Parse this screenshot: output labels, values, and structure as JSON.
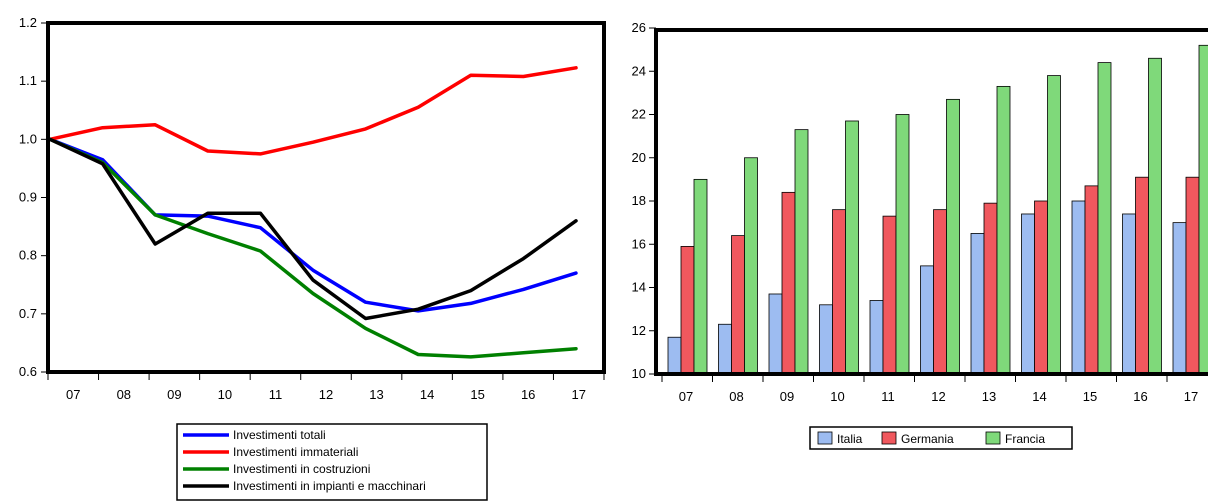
{
  "chart_data": [
    {
      "type": "line",
      "x": [
        "07",
        "08",
        "09",
        "10",
        "11",
        "12",
        "13",
        "14",
        "15",
        "16",
        "17"
      ],
      "ylim": [
        0.6,
        1.2
      ],
      "yticks": [
        "0.6",
        "0.7",
        "0.8",
        "0.9",
        "1.0",
        "1.1",
        "1.2"
      ],
      "grid": false,
      "legend_position": "bottom",
      "series": [
        {
          "name": "Investimenti totali",
          "color": "#0000ff",
          "values": [
            1.0,
            0.965,
            0.87,
            0.868,
            0.848,
            0.775,
            0.72,
            0.705,
            0.718,
            0.742,
            0.77
          ]
        },
        {
          "name": "Investimenti immateriali",
          "color": "#ff0000",
          "values": [
            1.0,
            1.02,
            1.025,
            0.98,
            0.975,
            0.995,
            1.018,
            1.055,
            1.11,
            1.108,
            1.123
          ]
        },
        {
          "name": "Investimenti in costruzioni",
          "color": "#008000",
          "values": [
            1.0,
            0.96,
            0.87,
            0.838,
            0.808,
            0.735,
            0.675,
            0.63,
            0.626,
            0.633,
            0.64
          ]
        },
        {
          "name": "Investimenti in impianti e macchinari",
          "color": "#000000",
          "values": [
            1.0,
            0.958,
            0.82,
            0.873,
            0.873,
            0.758,
            0.692,
            0.708,
            0.74,
            0.795,
            0.86
          ]
        }
      ]
    },
    {
      "type": "bar",
      "categories": [
        "07",
        "08",
        "09",
        "10",
        "11",
        "12",
        "13",
        "14",
        "15",
        "16",
        "17"
      ],
      "ylim": [
        10,
        26
      ],
      "yticks": [
        "10",
        "12",
        "14",
        "16",
        "18",
        "20",
        "22",
        "24",
        "26"
      ],
      "grid": false,
      "legend_position": "bottom",
      "series": [
        {
          "name": "Italia",
          "color": "#9dbcf1",
          "values": [
            11.7,
            12.3,
            13.7,
            13.2,
            13.4,
            15.0,
            16.5,
            17.4,
            18.0,
            17.4,
            17.0
          ]
        },
        {
          "name": "Germania",
          "color": "#f0585e",
          "values": [
            15.9,
            16.4,
            18.4,
            17.6,
            17.3,
            17.6,
            17.9,
            18.0,
            18.7,
            19.1,
            19.1
          ]
        },
        {
          "name": "Francia",
          "color": "#7fd97a",
          "values": [
            19.0,
            20.0,
            21.3,
            21.7,
            22.0,
            22.7,
            23.3,
            23.8,
            24.4,
            24.6,
            25.2
          ]
        }
      ]
    }
  ]
}
